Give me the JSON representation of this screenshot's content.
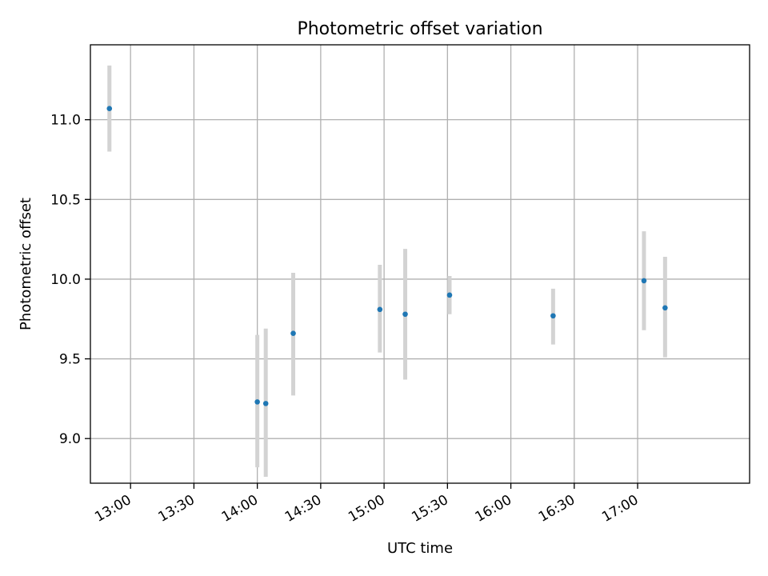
{
  "chart_data": {
    "type": "scatter",
    "title": "Photometric offset variation",
    "xlabel": "UTC time",
    "ylabel": "Photometric offset",
    "grid": true,
    "xlim": [
      "12:41",
      "17:53"
    ],
    "ylim": [
      8.72,
      11.47
    ],
    "x_ticks": [
      "13:00",
      "13:30",
      "14:00",
      "14:30",
      "15:00",
      "15:30",
      "16:00",
      "16:30",
      "17:00"
    ],
    "y_ticks": [
      "9.0",
      "9.5",
      "10.0",
      "10.5",
      "11.0"
    ],
    "points": [
      {
        "x": "12:50",
        "y": 11.07,
        "err_low": 10.8,
        "err_high": 11.34
      },
      {
        "x": "14:00",
        "y": 9.23,
        "err_low": 8.82,
        "err_high": 9.65
      },
      {
        "x": "14:04",
        "y": 9.22,
        "err_low": 8.76,
        "err_high": 9.69
      },
      {
        "x": "14:17",
        "y": 9.66,
        "err_low": 9.27,
        "err_high": 10.04
      },
      {
        "x": "14:58",
        "y": 9.81,
        "err_low": 9.54,
        "err_high": 10.09
      },
      {
        "x": "15:10",
        "y": 9.78,
        "err_low": 9.37,
        "err_high": 10.19
      },
      {
        "x": "15:31",
        "y": 9.9,
        "err_low": 9.78,
        "err_high": 10.02
      },
      {
        "x": "16:20",
        "y": 9.77,
        "err_low": 9.59,
        "err_high": 9.94
      },
      {
        "x": "17:03",
        "y": 9.99,
        "err_low": 9.68,
        "err_high": 10.3
      },
      {
        "x": "17:13",
        "y": 9.82,
        "err_low": 9.51,
        "err_high": 10.14
      }
    ],
    "marker_color": "#1f77b4",
    "errorbar_color": "#d3d3d3",
    "grid_color": "#b0b0b0"
  }
}
